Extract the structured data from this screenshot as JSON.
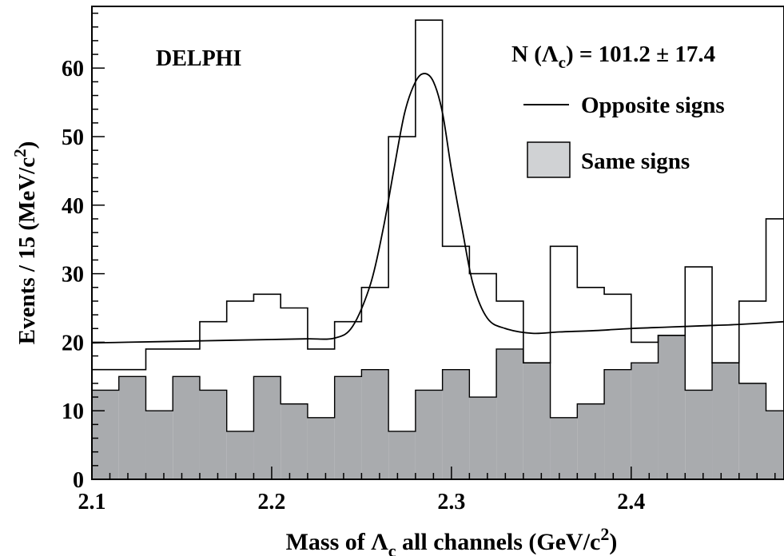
{
  "chart_data": {
    "type": "histogram",
    "experiment_label": "DELPHI",
    "xlabel": "Mass of Λ",
    "xlabel_sub": "c",
    "xlabel_tail": " all channels (GeV/c",
    "xlabel_sup": "2",
    "xlabel_end": ")",
    "ylabel": "Events / 15  (MeV/c",
    "ylabel_sup": "2",
    "ylabel_end": ")",
    "xlim": [
      2.1,
      2.485
    ],
    "ylim": [
      0,
      69
    ],
    "x_ticks": [
      2.1,
      2.2,
      2.3,
      2.4
    ],
    "x_tick_labels": [
      "2.1",
      "2.2",
      "2.3",
      "2.4"
    ],
    "y_ticks": [
      0,
      10,
      20,
      30,
      40,
      50,
      60
    ],
    "y_tick_labels": [
      "0",
      "10",
      "20",
      "30",
      "40",
      "50",
      "60"
    ],
    "bin_edges": [
      2.1,
      2.115,
      2.13,
      2.145,
      2.16,
      2.175,
      2.19,
      2.205,
      2.22,
      2.235,
      2.25,
      2.265,
      2.28,
      2.295,
      2.31,
      2.325,
      2.34,
      2.355,
      2.37,
      2.385,
      2.4,
      2.415,
      2.43,
      2.445,
      2.46,
      2.475,
      2.485
    ],
    "series": [
      {
        "name": "Opposite signs",
        "style": "step",
        "values": [
          16,
          16,
          19,
          19,
          23,
          26,
          27,
          25,
          19,
          23,
          28,
          50,
          67,
          34,
          30,
          26,
          17,
          34,
          28,
          27,
          20,
          21,
          31,
          17,
          26,
          38
        ]
      },
      {
        "name": "Same signs",
        "style": "filled",
        "color": "#a9abae",
        "values": [
          13,
          15,
          10,
          15,
          13,
          7,
          15,
          11,
          9,
          15,
          16,
          7,
          13,
          16,
          12,
          19,
          17,
          9,
          11,
          16,
          17,
          21,
          13,
          17,
          14,
          10
        ]
      }
    ],
    "fit_curve": {
      "x": [
        2.1,
        2.12,
        2.14,
        2.16,
        2.18,
        2.2,
        2.22,
        2.235,
        2.245,
        2.255,
        2.262,
        2.268,
        2.274,
        2.28,
        2.285,
        2.29,
        2.295,
        2.3,
        2.306,
        2.312,
        2.32,
        2.33,
        2.345,
        2.36,
        2.38,
        2.4,
        2.42,
        2.44,
        2.46,
        2.485
      ],
      "y": [
        19.9,
        20.0,
        20.1,
        20.2,
        20.3,
        20.4,
        20.5,
        20.6,
        22.3,
        28.5,
        36.5,
        45.2,
        53.5,
        58.0,
        59.2,
        58.0,
        53.5,
        45.2,
        36.5,
        28.5,
        23.5,
        22.0,
        21.3,
        21.5,
        21.7,
        22.0,
        22.2,
        22.4,
        22.6,
        23.0
      ]
    },
    "annotation": "N (Λ",
    "annotation_sub": "c",
    "annotation_tail": ") = 101.2 ± 17.4",
    "legend": {
      "placement": "top-right",
      "entries": [
        {
          "label": "Opposite signs",
          "symbol": "line"
        },
        {
          "label": "Same signs",
          "symbol": "filled-box"
        }
      ]
    },
    "grid": false
  }
}
